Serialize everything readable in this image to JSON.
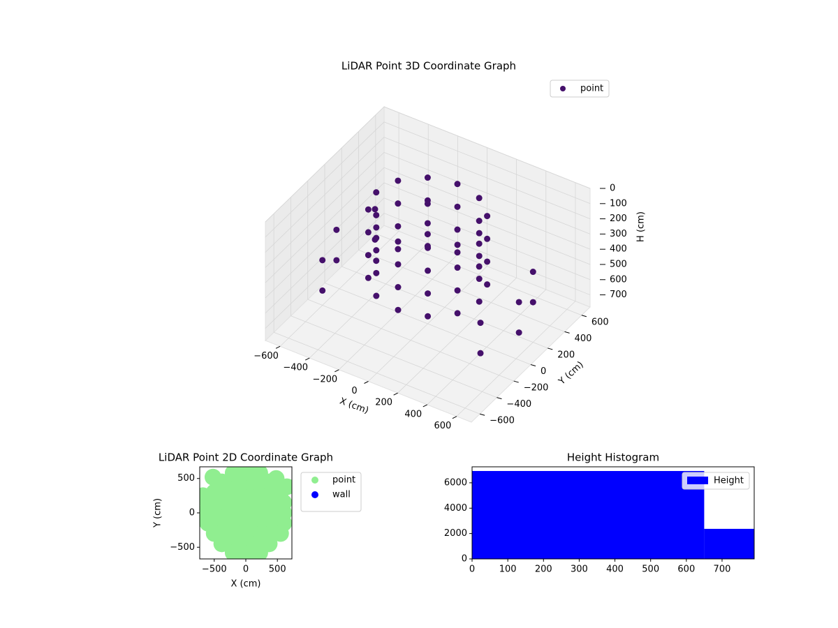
{
  "chart_data": [
    {
      "type": "scatter3d",
      "title": "LiDAR Point 3D Coordinate Graph",
      "xlabel": "X (cm)",
      "ylabel": "Y (cm)",
      "zlabel": "H (cm)",
      "xlim": [
        -700,
        700
      ],
      "ylim": [
        -700,
        700
      ],
      "zlim": [
        0,
        780
      ],
      "z_inverted": true,
      "xticks": [
        {
          "value": -600,
          "label": "−600"
        },
        {
          "value": -400,
          "label": "−400"
        },
        {
          "value": -200,
          "label": "−200"
        },
        0,
        200,
        400,
        600
      ],
      "yticks": [
        {
          "value": -600,
          "label": "−600"
        },
        {
          "value": -400,
          "label": "−400"
        },
        {
          "value": -200,
          "label": "−200"
        },
        0,
        200,
        400,
        600
      ],
      "zticks": [
        0,
        100,
        200,
        300,
        400,
        500,
        600,
        700
      ],
      "legend": "upper right",
      "series": [
        {
          "name": "point",
          "color": "#45106b",
          "x": [
            350,
            350,
            350,
            350,
            303,
            303,
            303,
            303,
            175,
            175,
            175,
            175,
            0,
            0,
            0,
            0,
            -175,
            -175,
            -175,
            -175,
            -303,
            -303,
            -303,
            -303,
            -350,
            -350,
            -350,
            -350,
            -303,
            -303,
            -303,
            -303,
            -175,
            -175,
            -175,
            -175,
            0,
            0,
            0,
            0,
            175,
            175,
            175,
            175,
            303,
            303,
            303,
            303,
            -310,
            -310,
            -537,
            -537,
            -620,
            -620,
            -537,
            -537,
            620,
            620,
            537,
            537,
            537,
            537
          ],
          "y": [
            0,
            0,
            0,
            0,
            175,
            175,
            175,
            175,
            303,
            303,
            303,
            303,
            350,
            350,
            350,
            350,
            303,
            303,
            303,
            303,
            175,
            175,
            175,
            175,
            0,
            0,
            0,
            0,
            -175,
            -175,
            -175,
            -175,
            -303,
            -303,
            -303,
            -303,
            -350,
            -350,
            -350,
            -350,
            -303,
            -303,
            -303,
            -303,
            -175,
            -175,
            -175,
            -175,
            537,
            537,
            310,
            310,
            0,
            0,
            -310,
            -310,
            0,
            0,
            -310,
            -310,
            310,
            310
          ],
          "z": [
            50,
            200,
            350,
            500,
            50,
            200,
            350,
            500,
            50,
            200,
            350,
            500,
            50,
            200,
            350,
            500,
            50,
            200,
            350,
            500,
            50,
            200,
            350,
            500,
            50,
            200,
            350,
            500,
            50,
            200,
            350,
            500,
            50,
            200,
            350,
            500,
            50,
            200,
            350,
            500,
            50,
            200,
            350,
            500,
            50,
            200,
            350,
            500,
            400,
            600,
            400,
            600,
            400,
            600,
            400,
            600,
            400,
            600,
            400,
            600,
            400,
            600
          ]
        }
      ]
    },
    {
      "type": "scatter",
      "title": "LiDAR Point 2D Coordinate Graph",
      "xlabel": "X (cm)",
      "ylabel": "Y (cm)",
      "xlim": [
        -730,
        730
      ],
      "ylim": [
        -670,
        670
      ],
      "xticks": [
        {
          "value": -500,
          "label": "−500"
        },
        0,
        500
      ],
      "yticks": [
        {
          "value": -500,
          "label": "−500"
        },
        0,
        500
      ],
      "legend": "outside upper right",
      "series": [
        {
          "name": "point",
          "color": "#90ee90",
          "x": [
            -650,
            -450,
            -300,
            -150,
            0,
            150,
            300,
            450,
            600,
            -600,
            -450,
            -300,
            -150,
            0,
            150,
            300,
            450,
            600,
            -600,
            -450,
            -300,
            -150,
            0,
            150,
            300,
            450,
            600,
            -500,
            -350,
            -200,
            -50,
            100,
            250,
            400,
            550,
            -500,
            -350,
            -200,
            -50,
            100,
            250,
            400,
            550,
            -380,
            -230,
            -80,
            70,
            220,
            370,
            -380,
            -230,
            -80,
            70,
            220,
            370,
            -200,
            -60,
            80,
            220,
            -200,
            -60,
            80,
            220,
            -650,
            650,
            -680,
            480,
            -520
          ],
          "y": [
            0,
            0,
            0,
            0,
            0,
            0,
            0,
            0,
            0,
            150,
            150,
            150,
            150,
            150,
            150,
            150,
            150,
            150,
            -150,
            -150,
            -150,
            -150,
            -150,
            -150,
            -150,
            -150,
            -150,
            300,
            300,
            300,
            300,
            300,
            300,
            300,
            300,
            -300,
            -300,
            -300,
            -300,
            -300,
            -300,
            -300,
            -300,
            450,
            450,
            450,
            450,
            450,
            450,
            -450,
            -450,
            -450,
            -450,
            -450,
            -450,
            580,
            580,
            580,
            580,
            -580,
            -580,
            -580,
            -580,
            -100,
            380,
            250,
            500,
            520
          ]
        },
        {
          "name": "wall",
          "color": "#0000ff",
          "x": [],
          "y": []
        }
      ]
    },
    {
      "type": "histogram",
      "title": "Height Histogram",
      "name": "Height",
      "color": "#0000ff",
      "bins": [
        0,
        650,
        790
      ],
      "counts": [
        6930,
        2370
      ],
      "xlim": [
        0,
        790
      ],
      "ylim": [
        0,
        7260
      ],
      "xticks": [
        0,
        100,
        200,
        300,
        400,
        500,
        600,
        700
      ],
      "yticks": [
        0,
        2000,
        4000,
        6000
      ],
      "legend": "upper right"
    }
  ]
}
